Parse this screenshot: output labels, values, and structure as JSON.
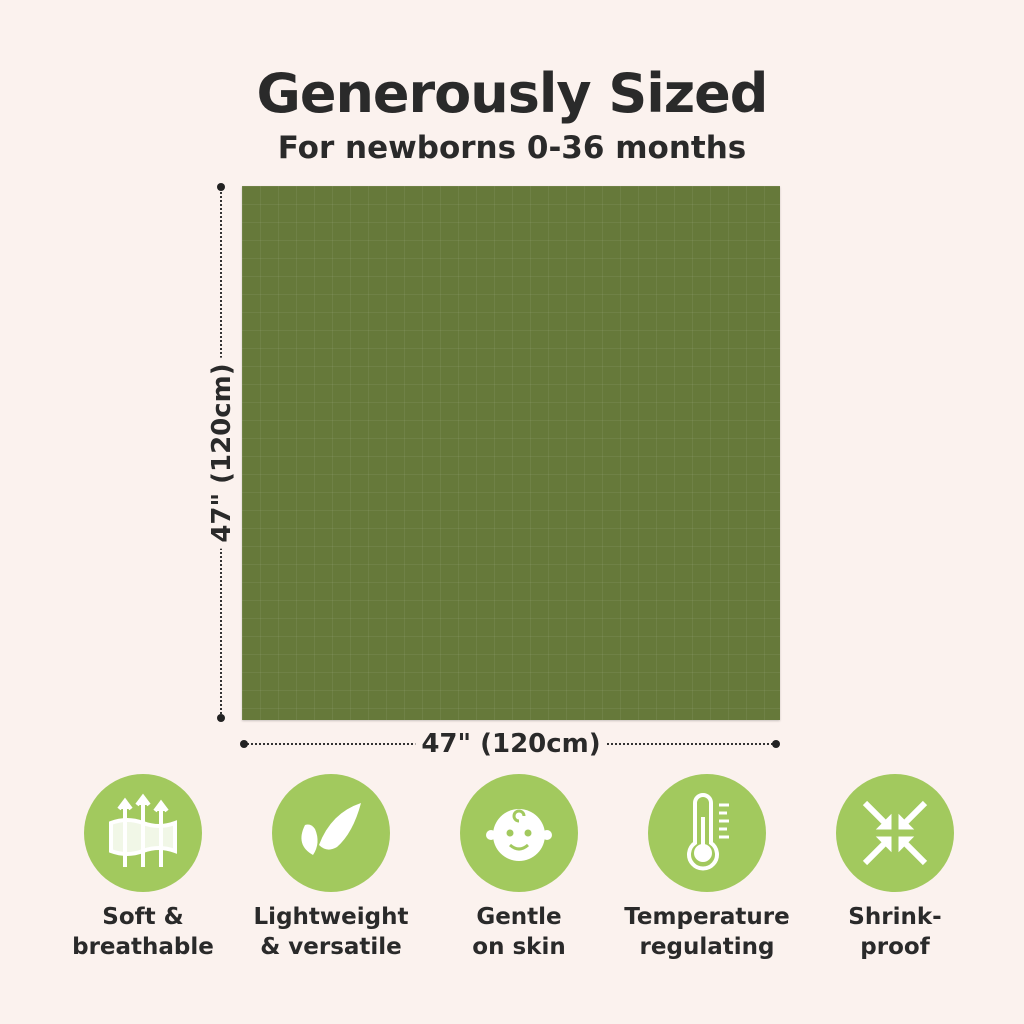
{
  "header": {
    "title": "Generously Sized",
    "subtitle": "For newborns 0-36 months"
  },
  "dimensions": {
    "height": "47\" (120cm)",
    "width": "47\" (120cm)"
  },
  "colors": {
    "background": "#fbf2ee",
    "blanket": "#66793a",
    "icon_circle": "#a2c95e"
  },
  "features": [
    {
      "icon": "breathable-fabric-icon",
      "label": "Soft &\nbreathable"
    },
    {
      "icon": "feather-icon",
      "label": "Lightweight\n& versatile"
    },
    {
      "icon": "baby-face-icon",
      "label": "Gentle\non skin"
    },
    {
      "icon": "thermometer-icon",
      "label": "Temperature\nregulating"
    },
    {
      "icon": "shrink-arrows-icon",
      "label": "Shrink-\nproof"
    }
  ]
}
